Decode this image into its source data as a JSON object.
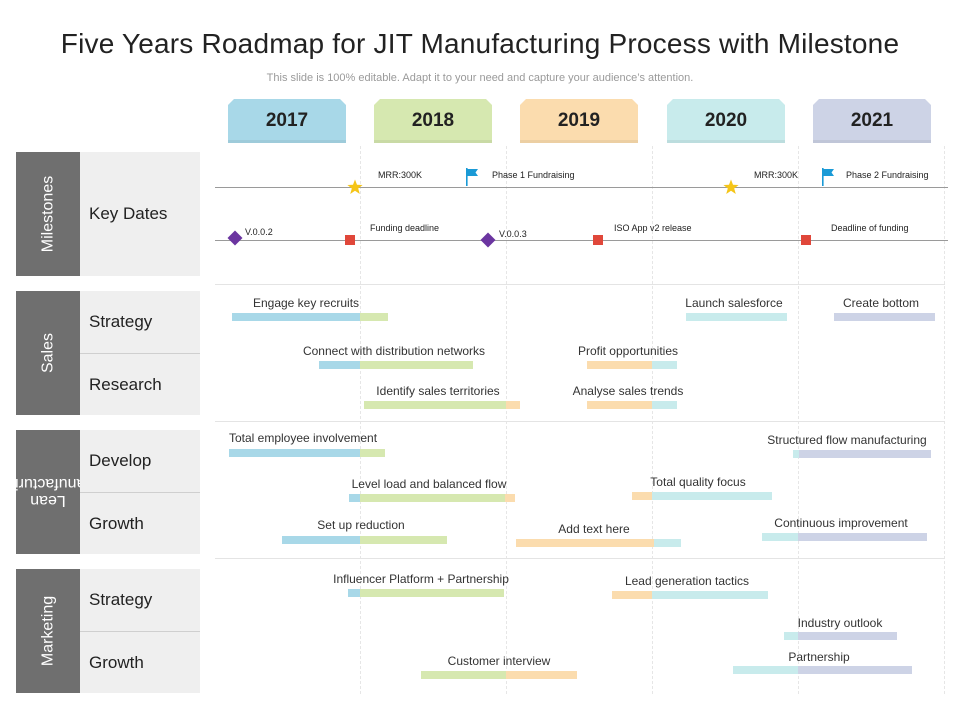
{
  "title": "Five Years Roadmap for JIT Manufacturing Process with Milestone",
  "subtitle": "This slide is 100% editable. Adapt it to your need and capture your audience’s attention.",
  "colors": {
    "blue": "#a8d8e8",
    "green": "#d6e8b0",
    "orange": "#fbdcae",
    "teal": "#c8ebec",
    "lavender": "#cdd3e6",
    "category_bg": "#6f6f6f",
    "sub_bg": "#efefef",
    "star": "#f5c518",
    "flag": "#1a9ad6",
    "diamond": "#6b35a0",
    "square": "#e0473a"
  },
  "years": [
    "2017",
    "2018",
    "2019",
    "2020",
    "2021"
  ],
  "categories": [
    {
      "label": "Milestones",
      "rows": [
        "Key Dates"
      ]
    },
    {
      "label": "Sales",
      "rows": [
        "Strategy",
        "Research"
      ]
    },
    {
      "label": "Lean\nmanufacturing",
      "rows": [
        "Develop",
        "Growth"
      ]
    },
    {
      "label": "Marketing",
      "rows": [
        "Strategy",
        "Growth"
      ]
    }
  ],
  "milestones": {
    "mrr_1": "MRR:300K",
    "phase_1": "Phase 1 Fundraising",
    "mrr_2": "MRR:300K",
    "phase_2": "Phase 2 Fundraising",
    "v002": "V.0.0.2",
    "funding_deadline": "Funding deadline",
    "v003": "V.0.0.3",
    "iso_release": "ISO App v2 release",
    "deadline_funding": "Deadline of funding"
  },
  "tasks": [
    {
      "label": "Engage key recruits"
    },
    {
      "label": "Launch salesforce"
    },
    {
      "label": "Create bottom"
    },
    {
      "label": "Connect with distribution networks"
    },
    {
      "label": "Profit opportunities"
    },
    {
      "label": "Identify sales territories"
    },
    {
      "label": "Analyse sales trends"
    },
    {
      "label": "Total employee involvement"
    },
    {
      "label": "Structured flow manufacturing"
    },
    {
      "label": "Level load and balanced flow"
    },
    {
      "label": "Total quality focus"
    },
    {
      "label": "Set up reduction"
    },
    {
      "label": "Add text here"
    },
    {
      "label": "Continuous improvement"
    },
    {
      "label": "Influencer Platform + Partnership"
    },
    {
      "label": "Lead generation tactics"
    },
    {
      "label": "Industry outlook"
    },
    {
      "label": "Customer interview"
    },
    {
      "label": "Partnership"
    }
  ]
}
